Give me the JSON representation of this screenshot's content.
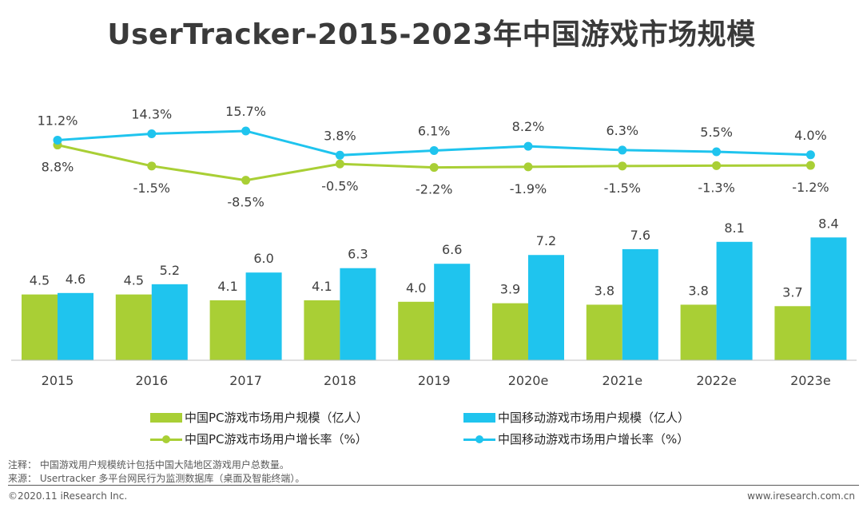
{
  "title": "UserTracker-2015-2023年中国游戏市场规模",
  "chart_data": {
    "type": "bar",
    "categories": [
      "2015",
      "2016",
      "2017",
      "2018",
      "2019",
      "2020e",
      "2021e",
      "2022e",
      "2023e"
    ],
    "bar_ylim": [
      0,
      9
    ],
    "series": [
      {
        "name": "中国PC游戏市场用户规模（亿人）",
        "kind": "bar",
        "color": "#a9cf35",
        "values": [
          4.5,
          4.5,
          4.1,
          4.1,
          4.0,
          3.9,
          3.8,
          3.8,
          3.7
        ],
        "labels": [
          "4.5",
          "4.5",
          "4.1",
          "4.1",
          "4.0",
          "3.9",
          "3.8",
          "3.8",
          "3.7"
        ]
      },
      {
        "name": "中国移动游戏市场用户规模（亿人）",
        "kind": "bar",
        "color": "#1fc4ee",
        "values": [
          4.6,
          5.2,
          6.0,
          6.3,
          6.6,
          7.2,
          7.6,
          8.1,
          8.4
        ],
        "labels": [
          "4.6",
          "5.2",
          "6.0",
          "6.3",
          "6.6",
          "7.2",
          "7.6",
          "8.1",
          "8.4"
        ]
      },
      {
        "name": "中国PC游戏市场用户增长率（%）",
        "kind": "line",
        "color": "#a9cf35",
        "values": [
          8.8,
          -1.5,
          -8.5,
          -0.5,
          -2.2,
          -1.9,
          -1.5,
          -1.3,
          -1.2
        ],
        "labels": [
          "8.8%",
          "-1.5%",
          "-8.5%",
          "-0.5%",
          "-2.2%",
          "-1.9%",
          "-1.5%",
          "-1.3%",
          "-1.2%"
        ]
      },
      {
        "name": "中国移动游戏市场用户增长率（%）",
        "kind": "line",
        "color": "#1fc4ee",
        "values": [
          11.2,
          14.3,
          15.7,
          3.8,
          6.1,
          8.2,
          6.3,
          5.5,
          4.0
        ],
        "labels": [
          "11.2%",
          "14.3%",
          "15.7%",
          "3.8%",
          "6.1%",
          "8.2%",
          "6.3%",
          "5.5%",
          "4.0%"
        ]
      }
    ]
  },
  "footer": {
    "note": "注释：  中国游戏用户规模统计包括中国大陆地区游戏用户总数量。",
    "source": "来源：  Usertracker 多平台网民行为监测数据库（桌面及智能终端）。",
    "copyright": "©2020.11 iResearch Inc.",
    "website": "www.iresearch.com.cn"
  }
}
